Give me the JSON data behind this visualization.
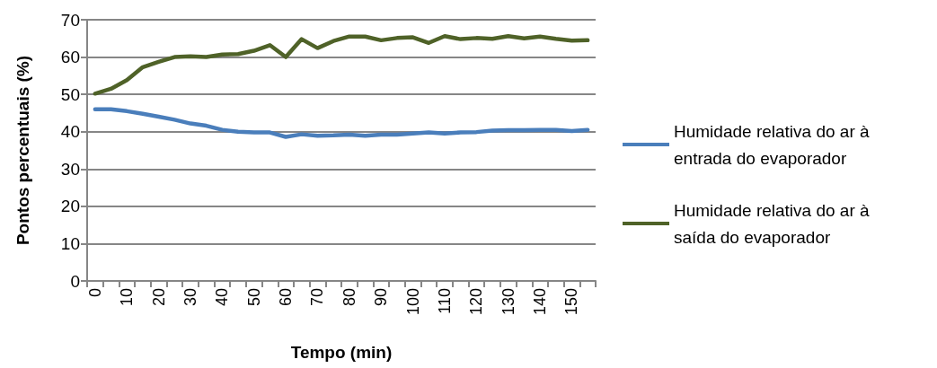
{
  "chart_data": {
    "type": "line",
    "xlabel": "Tempo (min)",
    "ylabel": "Pontos percentuais (%)",
    "categories": [
      "0",
      null,
      "10",
      null,
      "20",
      null,
      "30",
      null,
      "40",
      null,
      "50",
      null,
      "60",
      null,
      "70",
      null,
      "80",
      null,
      "90",
      null,
      "100",
      null,
      "110",
      null,
      "120",
      null,
      "130",
      null,
      "140",
      null,
      "150",
      null
    ],
    "series": [
      {
        "name": "Humidade relativa do ar à entrada do evaporador",
        "color": "#4a7ebb",
        "values": [
          46.0,
          46.0,
          45.5,
          44.8,
          44.0,
          43.2,
          42.2,
          41.6,
          40.5,
          40.0,
          39.8,
          39.8,
          38.6,
          39.3,
          38.9,
          39.0,
          39.2,
          38.9,
          39.2,
          39.2,
          39.5,
          39.8,
          39.5,
          39.8,
          39.9,
          40.3,
          40.4,
          40.4,
          40.5,
          40.5,
          40.2,
          40.5
        ]
      },
      {
        "name": "Humidade relativa do ar à saída do evaporador",
        "color": "#4f6228",
        "values": [
          50.2,
          51.5,
          53.8,
          57.3,
          58.7,
          60.0,
          60.2,
          60.0,
          60.7,
          60.8,
          61.7,
          63.2,
          60.0,
          64.8,
          62.4,
          64.3,
          65.5,
          65.5,
          64.5,
          65.1,
          65.3,
          63.8,
          65.6,
          64.8,
          65.1,
          64.9,
          65.6,
          65.0,
          65.5,
          64.9,
          64.4,
          64.5
        ]
      }
    ],
    "ylim": [
      0,
      70
    ],
    "yticks": [
      0,
      10,
      20,
      30,
      40,
      50,
      60,
      70
    ],
    "grid": "y",
    "legend": "right",
    "marker": "none",
    "line_style": "solid"
  }
}
